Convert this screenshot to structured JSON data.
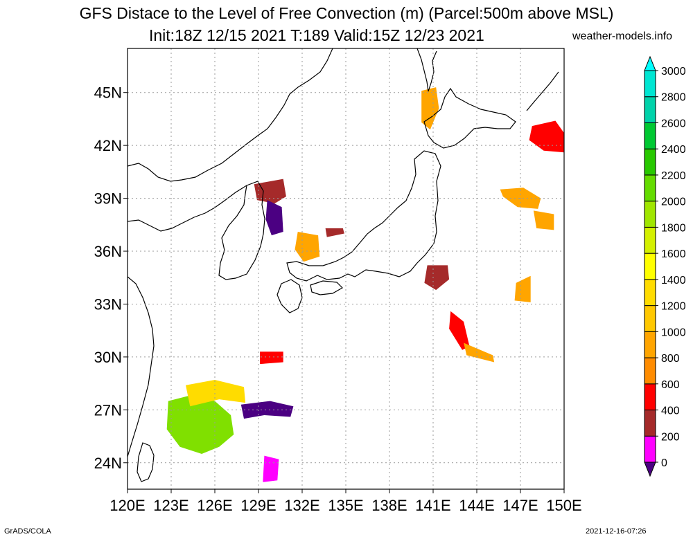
{
  "header": {
    "title": "GFS Distace to the Level of Free Convection (m) (Parcel:500m above MSL)",
    "subtitle": "Init:18Z 12/15 2021 T:189 Valid:15Z 12/23 2021",
    "site": "weather-models.info"
  },
  "footer": {
    "left": "GrADS/COLA",
    "right": "2021-12-16-07:26"
  },
  "map": {
    "lon_range": [
      120,
      150
    ],
    "lat_range": [
      22.5,
      47.5
    ],
    "lon_ticks": [
      {
        "value": 120,
        "label": "120E"
      },
      {
        "value": 123,
        "label": "123E"
      },
      {
        "value": 126,
        "label": "126E"
      },
      {
        "value": 129,
        "label": "129E"
      },
      {
        "value": 132,
        "label": "132E"
      },
      {
        "value": 135,
        "label": "135E"
      },
      {
        "value": 138,
        "label": "138E"
      },
      {
        "value": 141,
        "label": "141E"
      },
      {
        "value": 144,
        "label": "144E"
      },
      {
        "value": 147,
        "label": "147E"
      },
      {
        "value": 150,
        "label": "150E"
      }
    ],
    "lat_ticks": [
      {
        "value": 24,
        "label": "24N"
      },
      {
        "value": 27,
        "label": "27N"
      },
      {
        "value": 30,
        "label": "30N"
      },
      {
        "value": 33,
        "label": "33N"
      },
      {
        "value": 36,
        "label": "36N"
      },
      {
        "value": 39,
        "label": "39N"
      },
      {
        "value": 42,
        "label": "42N"
      },
      {
        "value": 45,
        "label": "45N"
      }
    ],
    "grid": true,
    "colorbar": {
      "levels": [
        {
          "value": 0,
          "label": "0"
        },
        {
          "value": 200,
          "label": "200"
        },
        {
          "value": 400,
          "label": "400"
        },
        {
          "value": 600,
          "label": "600"
        },
        {
          "value": 800,
          "label": "800"
        },
        {
          "value": 1000,
          "label": "1000"
        },
        {
          "value": 1200,
          "label": "1200"
        },
        {
          "value": 1400,
          "label": "1400"
        },
        {
          "value": 1600,
          "label": "1600"
        },
        {
          "value": 1800,
          "label": "1800"
        },
        {
          "value": 2000,
          "label": "2000"
        },
        {
          "value": 2200,
          "label": "2200"
        },
        {
          "value": 2400,
          "label": "2400"
        },
        {
          "value": 2600,
          "label": "2600"
        },
        {
          "value": 2800,
          "label": "2800"
        },
        {
          "value": 3000,
          "label": "3000"
        }
      ],
      "colors": [
        "#4b0082",
        "#ff00ff",
        "#a52a2a",
        "#ff0000",
        "#ff8c00",
        "#ffa500",
        "#ffc800",
        "#ffdc00",
        "#ffff00",
        "#d4f000",
        "#a0e600",
        "#64dc00",
        "#28c800",
        "#00c832",
        "#00d2aa",
        "#00e6d2",
        "#00ffff"
      ]
    },
    "fields": [
      {
        "name": "field-korea-strait-north",
        "lon": 129.9,
        "lat": 39.5,
        "color": "#a52a2a"
      },
      {
        "name": "field-korea-east",
        "lon": 130.1,
        "lat": 38.0,
        "color": "#4b0082"
      },
      {
        "name": "field-japan-sea-west",
        "lon": 132.3,
        "lat": 36.3,
        "color": "#ffa500"
      },
      {
        "name": "field-japan-sea-center",
        "lon": 134.0,
        "lat": 37.0,
        "color": "#a52a2a"
      },
      {
        "name": "field-hokkaido-west",
        "lon": 140.8,
        "lat": 44.1,
        "color": "#ffa500"
      },
      {
        "name": "field-kuril-east",
        "lon": 149.0,
        "lat": 42.5,
        "color": "#ff0000"
      },
      {
        "name": "field-pacific-northeast",
        "lon": 147.0,
        "lat": 39.0,
        "color": "#ffa500"
      },
      {
        "name": "field-pacific-ne-lower",
        "lon": 148.5,
        "lat": 37.8,
        "color": "#ffa500"
      },
      {
        "name": "field-kanto-south",
        "lon": 141.2,
        "lat": 34.6,
        "color": "#a52a2a"
      },
      {
        "name": "field-izu-chain",
        "lon": 142.5,
        "lat": 31.8,
        "color": "#ff0000"
      },
      {
        "name": "field-izu-chain-south",
        "lon": 143.7,
        "lat": 30.3,
        "color": "#ffa500"
      },
      {
        "name": "field-pacific-east-mid",
        "lon": 147.2,
        "lat": 33.6,
        "color": "#ffa500"
      },
      {
        "name": "field-kyushu-south",
        "lon": 129.8,
        "lat": 30.0,
        "color": "#ff0000"
      },
      {
        "name": "field-east-china-sea",
        "lon": 125.7,
        "lat": 26.5,
        "color": "#80e000"
      },
      {
        "name": "field-okinawa-north",
        "lon": 126.5,
        "lat": 28.0,
        "color": "#ffdc00"
      },
      {
        "name": "field-ryukyu",
        "lon": 129.6,
        "lat": 27.0,
        "color": "#4b0082"
      },
      {
        "name": "field-pacific-south",
        "lon": 129.8,
        "lat": 23.8,
        "color": "#ff00ff"
      }
    ]
  }
}
